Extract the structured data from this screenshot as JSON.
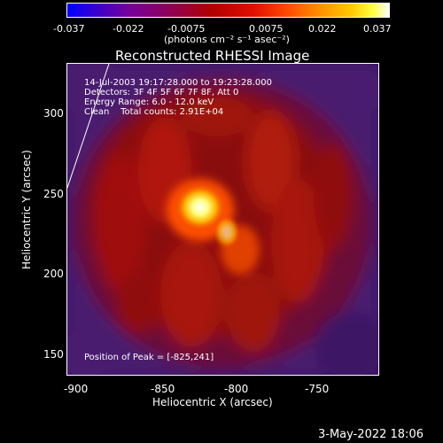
{
  "colorbar": {
    "tick_labels": [
      "-0.037",
      "-0.022",
      "-0.0075",
      "0.0075",
      "0.022",
      "0.037"
    ],
    "unit_text": "(photons cm⁻² s⁻¹ asec⁻²)"
  },
  "title": "Reconstructed RHESSI Image",
  "info": {
    "time_range": "14-Jul-2003 19:17:28.000 to 19:23:28.000",
    "detectors": "Detectors: 3F 4F 5F 6F 7F 8F, Att 0",
    "energy_range": "Energy Range: 6.0 - 12.0 keV",
    "clean": "Clean    Total counts: 2.91E+04"
  },
  "peak_text": "Position of Peak = [-825,241]",
  "axes": {
    "xlabel": "Heliocentric X (arcsec)",
    "ylabel": "Heliocentric Y (arcsec)",
    "x_ticks": [
      "-900",
      "-850",
      "-800",
      "-750"
    ],
    "y_ticks": [
      "300",
      "250",
      "200",
      "150"
    ]
  },
  "footer_date": "3-May-2022 18:06"
}
